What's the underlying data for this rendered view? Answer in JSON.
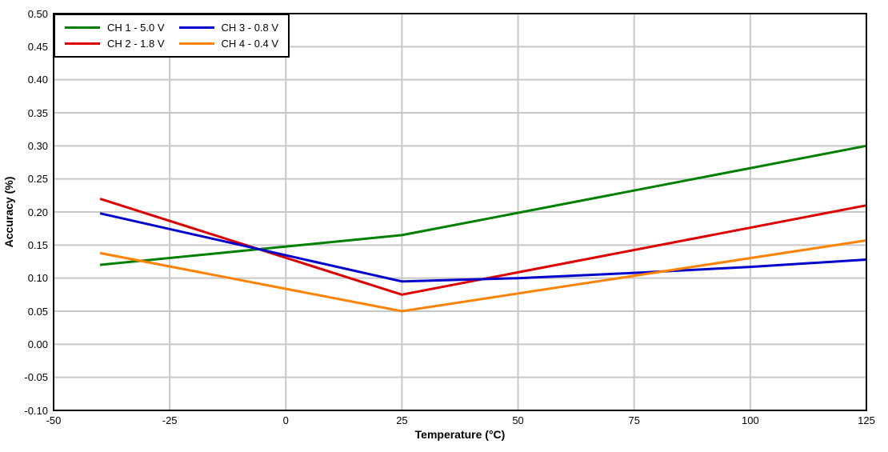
{
  "chart_data": {
    "type": "line",
    "title": "",
    "xlabel": "Temperature (°C)",
    "ylabel": "Accuracy (%)",
    "xlim": [
      -50,
      125
    ],
    "ylim": [
      -0.1,
      0.5
    ],
    "x_ticks": [
      "-50",
      "-25",
      "0",
      "25",
      "50",
      "75",
      "100",
      "125"
    ],
    "y_ticks": [
      "0.50",
      "0.45",
      "0.40",
      "0.35",
      "0.30",
      "0.25",
      "0.20",
      "0.15",
      "0.10",
      "0.05",
      "0.00",
      "-0.05",
      "-0.10"
    ],
    "grid": true,
    "legend_position": "top-left",
    "colors": {
      "grid": "#c8c8c8",
      "border": "#000000",
      "background": "#ffffff"
    },
    "series": [
      {
        "name": "CH 1 - 5.0 V",
        "color": "#008000",
        "points": [
          [
            -40,
            0.12
          ],
          [
            25,
            0.165
          ],
          [
            125,
            0.3
          ]
        ]
      },
      {
        "name": "CH 2 - 1.8 V",
        "color": "#dd0000",
        "points": [
          [
            -40,
            0.22
          ],
          [
            25,
            0.075
          ],
          [
            125,
            0.21
          ]
        ]
      },
      {
        "name": "CH 3 - 0.8 V",
        "color": "#0000cd",
        "points": [
          [
            -40,
            0.198
          ],
          [
            25,
            0.095
          ],
          [
            50,
            0.1
          ],
          [
            75,
            0.108
          ],
          [
            100,
            0.117
          ],
          [
            125,
            0.128
          ]
        ]
      },
      {
        "name": "CH 4 - 0.4 V",
        "color": "#ff8200",
        "points": [
          [
            -40,
            0.138
          ],
          [
            25,
            0.05
          ],
          [
            125,
            0.157
          ]
        ]
      }
    ]
  }
}
